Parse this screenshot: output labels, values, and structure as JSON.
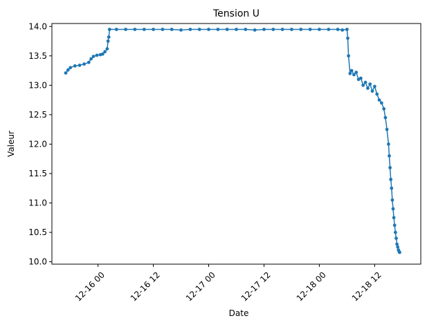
{
  "chart_data": {
    "type": "line",
    "title": "Tension U",
    "xlabel": "Date",
    "ylabel": "Valeur",
    "x_type": "datetime",
    "xlim": [
      "2024-12-15 14:00",
      "2024-12-18 22:00"
    ],
    "ylim": [
      9.96,
      14.05
    ],
    "x_ticks": [
      {
        "value": "2024-12-16 00:00",
        "label": "12-16 00"
      },
      {
        "value": "2024-12-16 12:00",
        "label": "12-16 12"
      },
      {
        "value": "2024-12-17 00:00",
        "label": "12-17 00"
      },
      {
        "value": "2024-12-17 12:00",
        "label": "12-17 12"
      },
      {
        "value": "2024-12-18 00:00",
        "label": "12-18 00"
      },
      {
        "value": "2024-12-18 12:00",
        "label": "12-18 12"
      }
    ],
    "y_ticks": [
      "10.0",
      "10.5",
      "11.0",
      "11.5",
      "12.0",
      "12.5",
      "13.0",
      "13.5",
      "14.0"
    ],
    "grid": false,
    "series_color": "#1f77b4",
    "marker": "circle",
    "x_tick_rotation": 45,
    "series": [
      {
        "x": [
          "2024-12-15 17:00",
          "2024-12-15 17:30",
          "2024-12-15 18:00",
          "2024-12-15 19:00",
          "2024-12-15 20:00",
          "2024-12-15 21:00",
          "2024-12-15 22:00",
          "2024-12-15 22:30",
          "2024-12-15 23:00",
          "2024-12-15 23:45",
          "2024-12-16 00:30",
          "2024-12-16 01:00",
          "2024-12-16 01:30",
          "2024-12-16 02:00",
          "2024-12-16 02:10",
          "2024-12-16 02:20",
          "2024-12-16 02:30",
          "2024-12-16 04:00",
          "2024-12-16 06:00",
          "2024-12-16 08:00",
          "2024-12-16 10:00",
          "2024-12-16 12:00",
          "2024-12-16 14:00",
          "2024-12-16 16:00",
          "2024-12-16 18:00",
          "2024-12-16 20:00",
          "2024-12-16 22:00",
          "2024-12-17 00:00",
          "2024-12-17 02:00",
          "2024-12-17 04:00",
          "2024-12-17 06:00",
          "2024-12-17 08:00",
          "2024-12-17 10:00",
          "2024-12-17 12:00",
          "2024-12-17 14:00",
          "2024-12-17 16:00",
          "2024-12-17 18:00",
          "2024-12-17 20:00",
          "2024-12-17 22:00",
          "2024-12-18 00:00",
          "2024-12-18 02:00",
          "2024-12-18 04:00",
          "2024-12-18 05:00",
          "2024-12-18 06:00",
          "2024-12-18 06:10",
          "2024-12-18 06:20",
          "2024-12-18 06:40",
          "2024-12-18 07:00",
          "2024-12-18 07:30",
          "2024-12-18 08:00",
          "2024-12-18 08:30",
          "2024-12-18 09:00",
          "2024-12-18 09:30",
          "2024-12-18 10:00",
          "2024-12-18 10:30",
          "2024-12-18 11:00",
          "2024-12-18 11:30",
          "2024-12-18 12:00",
          "2024-12-18 12:30",
          "2024-12-18 13:00",
          "2024-12-18 13:30",
          "2024-12-18 14:00",
          "2024-12-18 14:20",
          "2024-12-18 14:40",
          "2024-12-18 15:00",
          "2024-12-18 15:10",
          "2024-12-18 15:20",
          "2024-12-18 15:30",
          "2024-12-18 15:40",
          "2024-12-18 15:50",
          "2024-12-18 16:00",
          "2024-12-18 16:10",
          "2024-12-18 16:20",
          "2024-12-18 16:30",
          "2024-12-18 16:40",
          "2024-12-18 16:50",
          "2024-12-18 17:00",
          "2024-12-18 17:10",
          "2024-12-18 17:20",
          "2024-12-18 17:25"
        ],
        "y": [
          13.21,
          13.26,
          13.3,
          13.33,
          13.34,
          13.36,
          13.39,
          13.45,
          13.49,
          13.51,
          13.52,
          13.53,
          13.57,
          13.62,
          13.75,
          13.82,
          13.95,
          13.95,
          13.95,
          13.95,
          13.95,
          13.95,
          13.95,
          13.95,
          13.94,
          13.95,
          13.95,
          13.95,
          13.95,
          13.95,
          13.95,
          13.95,
          13.94,
          13.95,
          13.95,
          13.95,
          13.95,
          13.95,
          13.95,
          13.95,
          13.95,
          13.95,
          13.94,
          13.95,
          13.8,
          13.5,
          13.2,
          13.25,
          13.18,
          13.22,
          13.1,
          13.12,
          13.0,
          13.05,
          12.95,
          13.02,
          12.9,
          12.98,
          12.85,
          12.75,
          12.7,
          12.6,
          12.45,
          12.25,
          12.0,
          11.8,
          11.6,
          11.4,
          11.25,
          11.05,
          10.9,
          10.75,
          10.62,
          10.5,
          10.4,
          10.3,
          10.25,
          10.2,
          10.17,
          10.16
        ]
      }
    ]
  }
}
